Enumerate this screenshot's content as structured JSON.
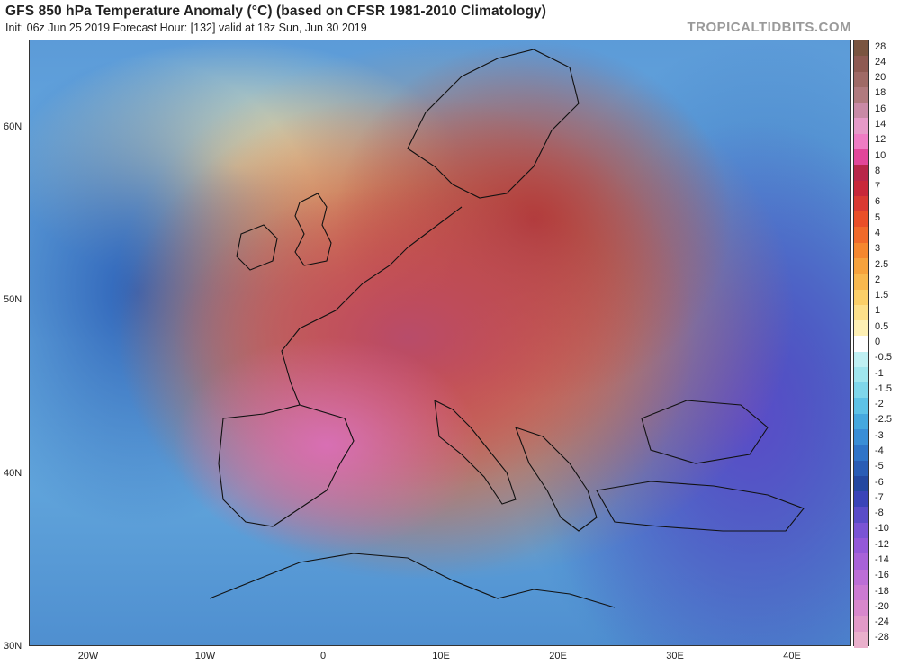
{
  "header": {
    "title": "GFS 850 hPa Temperature Anomaly (°C) (based on CFSR 1981-2010 Climatology)",
    "subtitle": "Init: 06z Jun 25 2019   Forecast Hour: [132]   valid at 18z Sun, Jun 30 2019",
    "brand": "TROPICALTIDBITS.COM"
  },
  "axes": {
    "lat_labels": [
      "60N",
      "50N",
      "40N",
      "30N"
    ],
    "lon_labels": [
      "20W",
      "10W",
      "0",
      "10E",
      "20E",
      "30E",
      "40E"
    ]
  },
  "colorbar": {
    "labels": [
      "28",
      "24",
      "20",
      "18",
      "16",
      "14",
      "12",
      "10",
      "8",
      "7",
      "6",
      "5",
      "4",
      "3",
      "2.5",
      "2",
      "1.5",
      "1",
      "0.5",
      "0",
      "-0.5",
      "-1",
      "-1.5",
      "-2",
      "-2.5",
      "-3",
      "-4",
      "-5",
      "-6",
      "-7",
      "-8",
      "-10",
      "-12",
      "-14",
      "-16",
      "-18",
      "-20",
      "-24",
      "-28"
    ],
    "colors": [
      "#7a5540",
      "#8e5a52",
      "#9f6a66",
      "#b07a7e",
      "#c98aa6",
      "#e69ac8",
      "#ef7cc4",
      "#e2469a",
      "#b8264a",
      "#c8283a",
      "#d93a32",
      "#ea4f28",
      "#f06a2a",
      "#f5872e",
      "#f6a23c",
      "#f8b84e",
      "#fbcf68",
      "#fde08a",
      "#fef0b4",
      "#ffffff",
      "#bff0f3",
      "#a0e6ee",
      "#7fd6ea",
      "#5ec2e6",
      "#46a8de",
      "#3a8ed6",
      "#2f74c8",
      "#2a5db5",
      "#2448a0",
      "#3a44b8",
      "#5a4cc8",
      "#7a54d4",
      "#9458d8",
      "#a862d8",
      "#bc6ed6",
      "#cc7ad2",
      "#d888cc",
      "#e29ac8",
      "#eab0cc"
    ]
  },
  "map": {
    "description_icon": "weather-map-shading"
  }
}
